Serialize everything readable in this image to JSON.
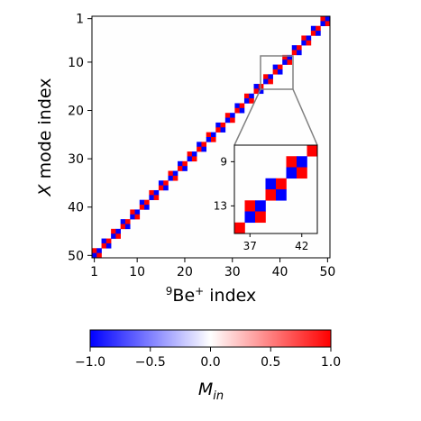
{
  "chart_data": {
    "type": "heatmap",
    "xlabel_sup": "9",
    "xlabel_main": "Be",
    "xlabel_charge": "+",
    "xlabel_suffix": "index",
    "ylabel_italic": "X",
    "ylabel_rest": "mode index",
    "x_ticks": [
      "1",
      "10",
      "20",
      "30",
      "40",
      "50"
    ],
    "y_ticks": [
      "1",
      "10",
      "20",
      "30",
      "40",
      "50"
    ],
    "x_tick_values": [
      1,
      10,
      20,
      30,
      40,
      50
    ],
    "y_tick_values": [
      1,
      10,
      20,
      30,
      40,
      50
    ],
    "n_ions": 50,
    "n_modes": 50,
    "structure": "anti-diagonal 2x2 blocks: mode m couples to ions (51-m) and neighbour; signs alternate blue/red",
    "inset": {
      "x_range": [
        36,
        43
      ],
      "y_range": [
        8,
        15
      ],
      "x_ticks": [
        "37",
        "42"
      ],
      "x_tick_values": [
        37,
        42
      ],
      "y_ticks": [
        "9",
        "13"
      ],
      "y_tick_values": [
        9,
        13
      ]
    },
    "colorbar": {
      "label_italic": "M",
      "label_sub": "in",
      "ticks": [
        "−1.0",
        "−0.5",
        "0.0",
        "0.5",
        "1.0"
      ],
      "tick_values": [
        -1.0,
        -0.5,
        0.0,
        0.5,
        1.0
      ],
      "range": [
        -1.0,
        1.0
      ],
      "cmap": "bwr"
    },
    "colors": {
      "neg": "#0000ff",
      "pos": "#ff0000",
      "mid": "#ffffff"
    }
  }
}
